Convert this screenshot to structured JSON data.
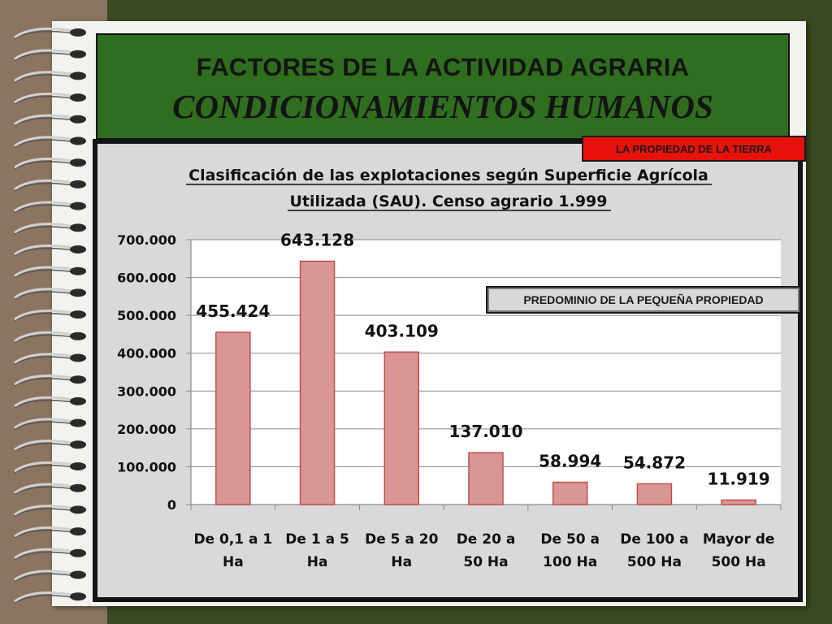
{
  "slide": {
    "title_main": "FACTORES DE LA ACTIVIDAD AGRARIA",
    "title_sub": "CONDICIONAMIENTOS HUMANOS",
    "badge_top": "LA PROPIEDAD DE LA TIERRA",
    "badge_mid": "PREDOMINIO DE LA PEQUEÑA PROPIEDAD"
  },
  "colors": {
    "bar_fill": "#d99694",
    "bar_stroke": "#c0504d",
    "title_bg": "#2e6e1e",
    "badge_top_bg": "#e8120c"
  },
  "chart_data": {
    "type": "bar",
    "title_line1": "Clasificación de las explotaciones según Superficie Agrícola",
    "title_line2": "Utilizada (SAU). Censo agrario 1.999",
    "categories": [
      [
        "De 0,1 a 1",
        "Ha"
      ],
      [
        "De 1 a 5",
        "Ha"
      ],
      [
        "De 5 a 20",
        "Ha"
      ],
      [
        "De 20 a",
        "50 Ha"
      ],
      [
        "De 50 a",
        "100 Ha"
      ],
      [
        "De 100 a",
        "500 Ha"
      ],
      [
        "Mayor de",
        "500  Ha"
      ]
    ],
    "values": [
      455424,
      643128,
      403109,
      137010,
      58994,
      54872,
      11919
    ],
    "value_labels": [
      "455.424",
      "643.128",
      "403.109",
      "137.010",
      "58.994",
      "54.872",
      "11.919"
    ],
    "ylim": [
      0,
      700000
    ],
    "yticks": [
      0,
      100000,
      200000,
      300000,
      400000,
      500000,
      600000,
      700000
    ],
    "ytick_labels": [
      "0",
      "100.000",
      "200.000",
      "300.000",
      "400.000",
      "500.000",
      "600.000",
      "700.000"
    ],
    "grid": true,
    "legend": "none"
  }
}
